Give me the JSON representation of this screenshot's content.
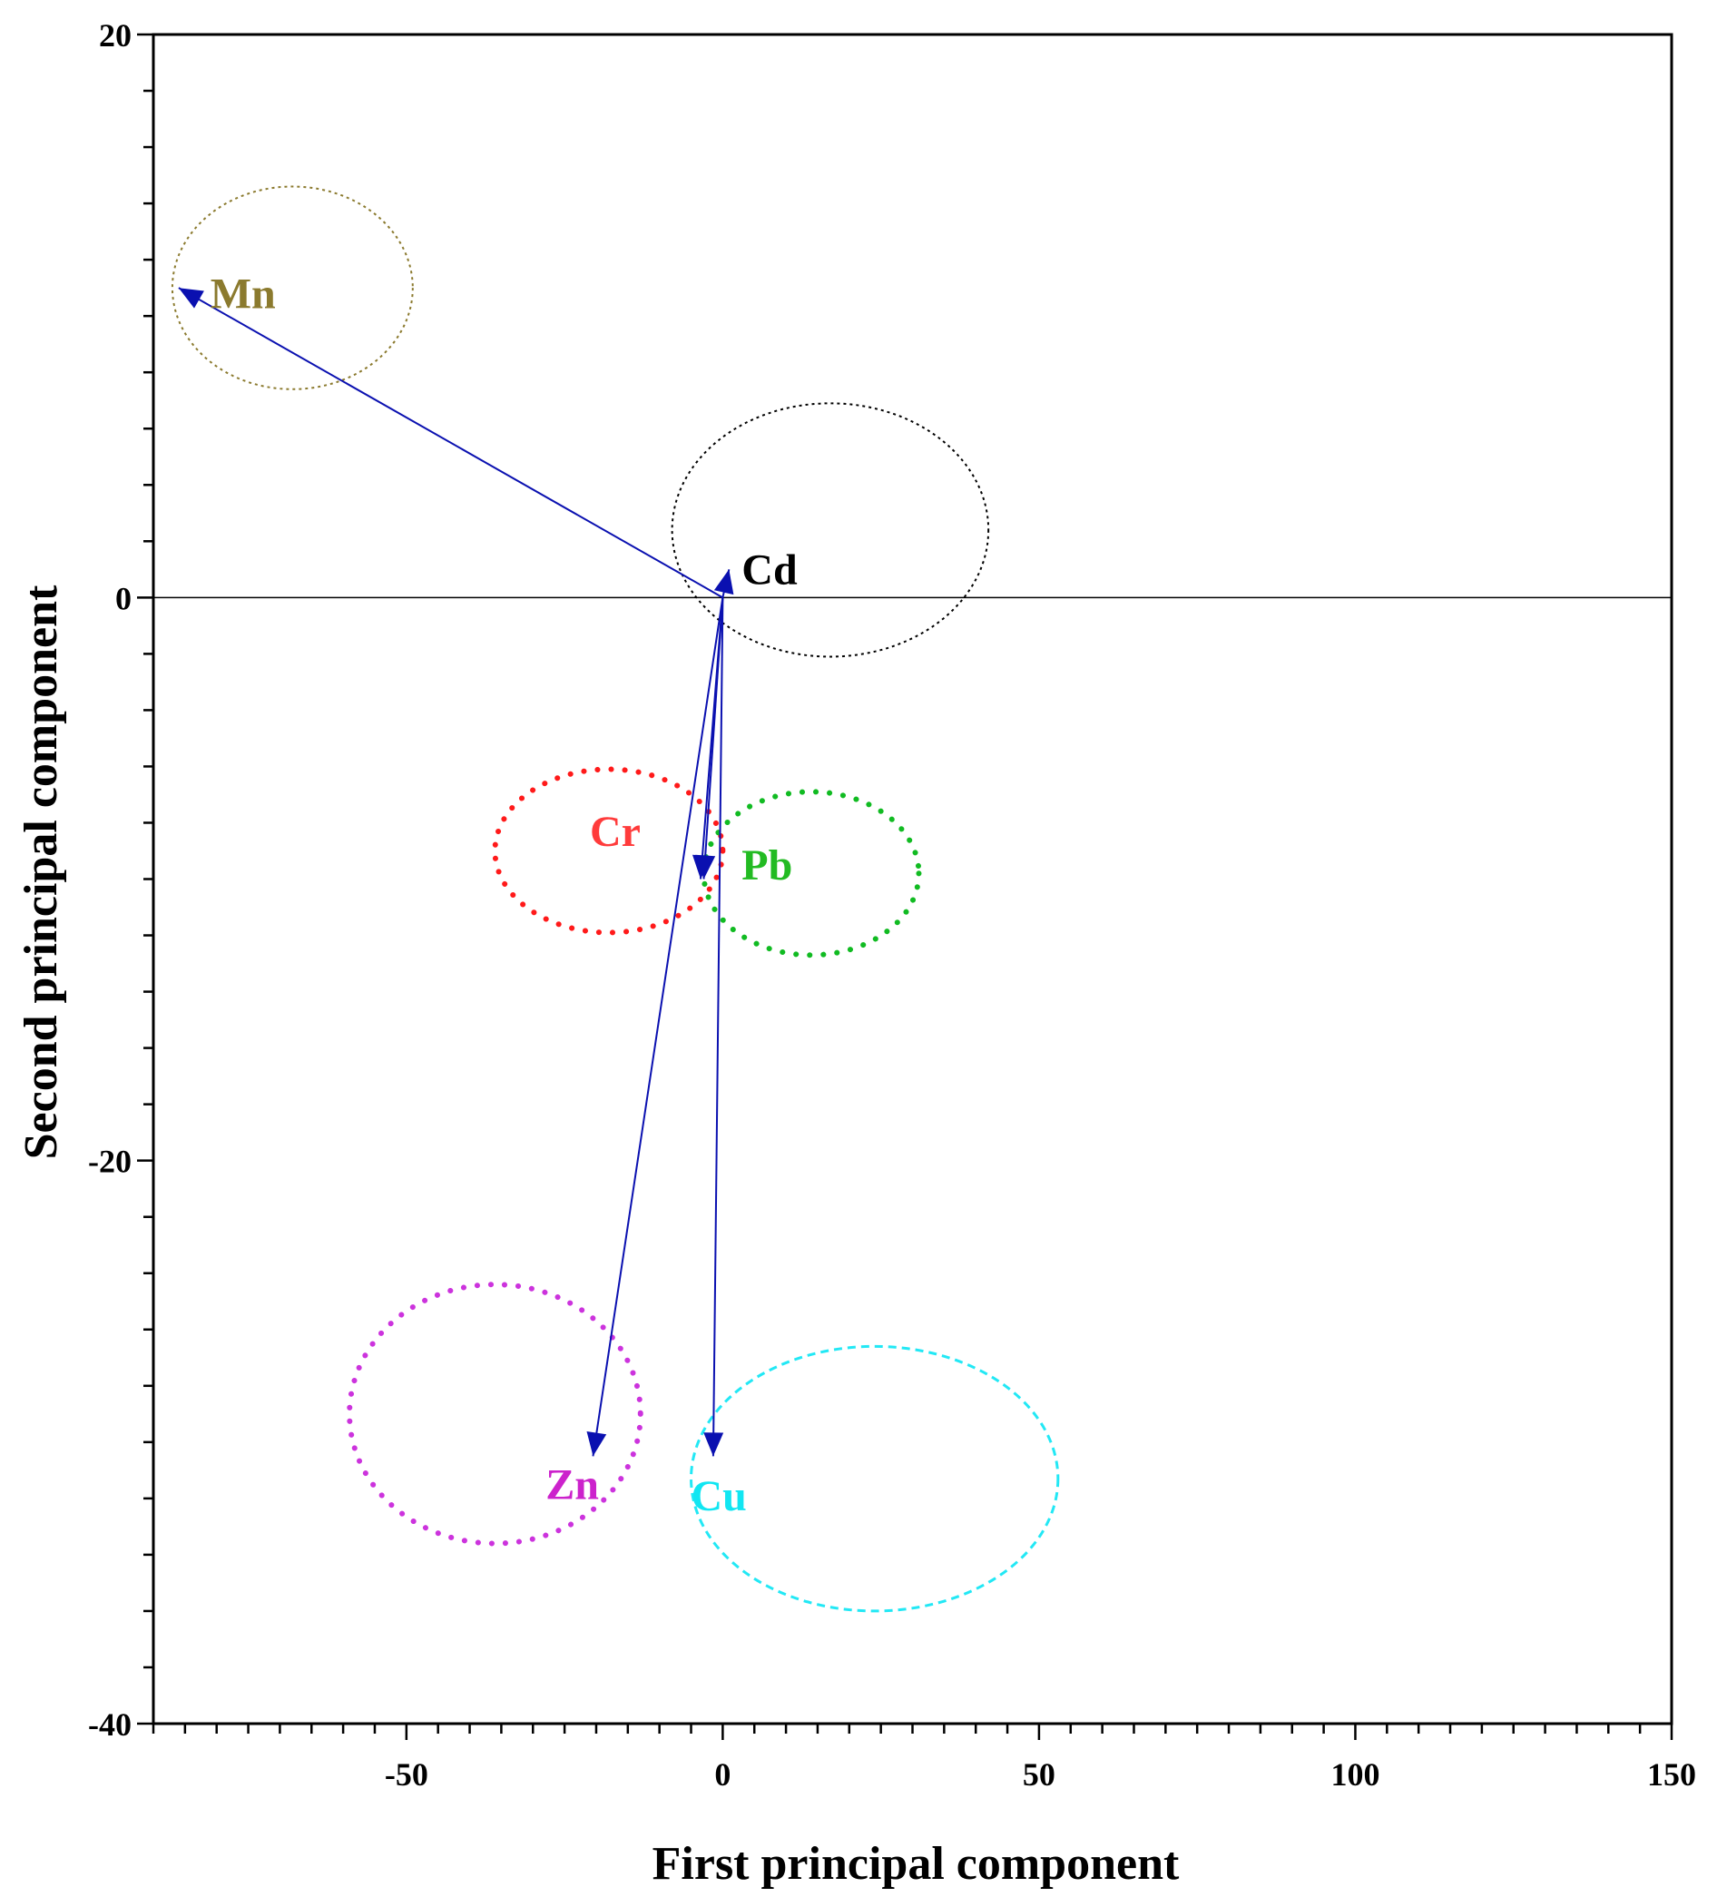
{
  "chart_data": {
    "type": "biplot",
    "title": "",
    "xlabel": "First principal component",
    "ylabel": "Second principal component",
    "xlim": [
      -90,
      150
    ],
    "ylim": [
      -40,
      20
    ],
    "xticks": [
      -50,
      0,
      50,
      100,
      150
    ],
    "yticks": [
      20,
      0,
      -20,
      -40
    ],
    "x_tick_labels": [
      "-50",
      "0",
      "50",
      "100",
      "150"
    ],
    "y_tick_labels": [
      "20",
      "0",
      "-20",
      "-40"
    ],
    "reference_line_y": 0,
    "colors": {
      "arrow": "#0a10b0",
      "axis": "#000000"
    },
    "vectors": [
      {
        "name": "Mn",
        "x": -86,
        "y": 11,
        "label_x": -81,
        "label_y": 10.8,
        "color": "#8b7a2e"
      },
      {
        "name": "Cd",
        "x": 1,
        "y": 1,
        "label_x": 3,
        "label_y": 1,
        "color": "#000000"
      },
      {
        "name": "Cr",
        "x": -3.5,
        "y": -10,
        "label_x": -21,
        "label_y": -8.3,
        "color": "#ff3b3b"
      },
      {
        "name": "Pb",
        "x": -3,
        "y": -10,
        "label_x": 3,
        "label_y": -9.5,
        "color": "#22bb22"
      },
      {
        "name": "Zn",
        "x": -20.5,
        "y": -30.5,
        "label_x": -28,
        "label_y": -31.5,
        "color": "#cc22cc"
      },
      {
        "name": "Cu",
        "x": -1.5,
        "y": -30.5,
        "label_x": -5,
        "label_y": -31.9,
        "color": "#11e6f2"
      }
    ],
    "ellipses": [
      {
        "group": "Mn",
        "cx": -68,
        "cy": 11,
        "rx": 19,
        "ry": 3.6,
        "style": "dotted",
        "color": "#8b7a2e"
      },
      {
        "group": "Cd",
        "cx": 17,
        "cy": 2.4,
        "rx": 25,
        "ry": 4.5,
        "style": "dotted",
        "color": "#000000"
      },
      {
        "group": "Cr",
        "cx": -18,
        "cy": -9,
        "rx": 18,
        "ry": 2.9,
        "style": "bold-dotted",
        "color": "#ff1a1a"
      },
      {
        "group": "Pb",
        "cx": 14,
        "cy": -9.8,
        "rx": 17,
        "ry": 2.9,
        "style": "bold-dotted",
        "color": "#11bb22"
      },
      {
        "group": "Zn",
        "cx": -36,
        "cy": -29,
        "rx": 23,
        "ry": 4.6,
        "style": "bold-dotted",
        "color": "#cc33dd"
      },
      {
        "group": "Cu",
        "cx": 24,
        "cy": -31.3,
        "rx": 29,
        "ry": 4.7,
        "style": "dashed",
        "color": "#22e8f5"
      }
    ]
  }
}
